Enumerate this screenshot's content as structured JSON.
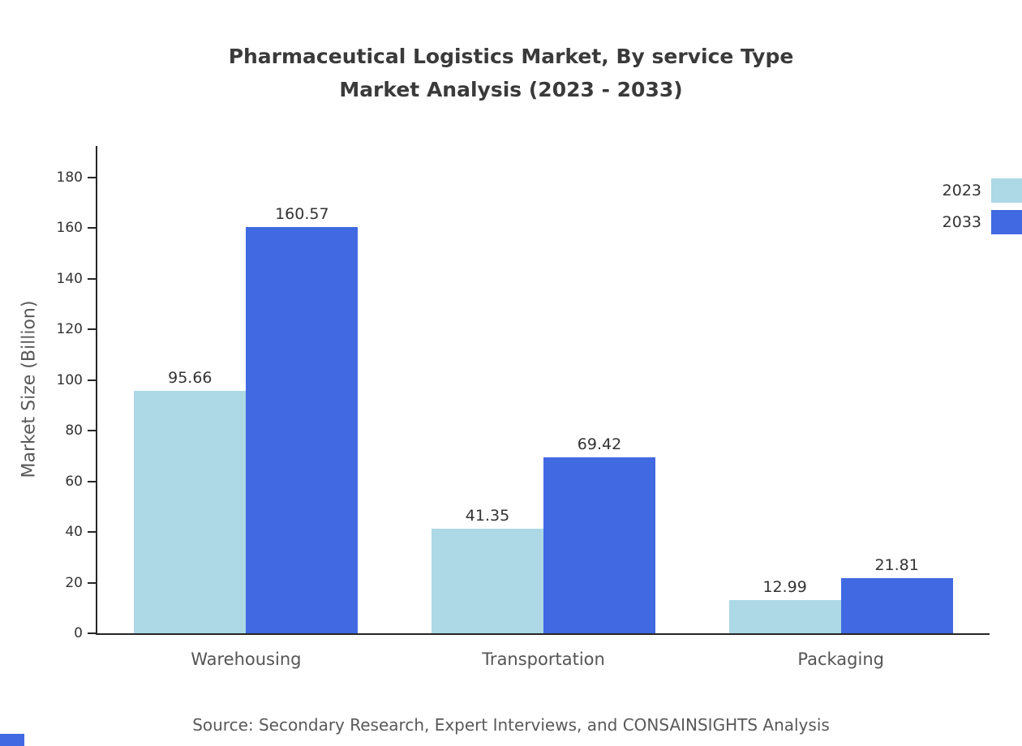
{
  "title": {
    "line1": "Pharmaceutical Logistics Market, By service Type",
    "line2": "Market Analysis (2023 - 2033)"
  },
  "chart_data": {
    "type": "bar",
    "categories": [
      "Warehousing",
      "Transportation",
      "Packaging"
    ],
    "series": [
      {
        "name": "2023",
        "color": "#ADD8E6",
        "values": [
          95.66,
          41.35,
          12.99
        ]
      },
      {
        "name": "2033",
        "color": "#4169E1",
        "values": [
          160.57,
          69.42,
          21.81
        ]
      }
    ],
    "title": "Pharmaceutical Logistics Market, By service Type Market Analysis (2023 - 2033)",
    "xlabel": "",
    "ylabel": "Market Size (Billion)",
    "ylim": [
      0,
      192.5
    ],
    "yticks": [
      0,
      20,
      40,
      60,
      80,
      100,
      120,
      140,
      160,
      180
    ],
    "grid": false,
    "legend_position": "top-right",
    "value_labels": true,
    "accent_color": "#4169E1"
  },
  "source": "Source: Secondary Research, Expert Interviews, and CONSAINSIGHTS Analysis"
}
